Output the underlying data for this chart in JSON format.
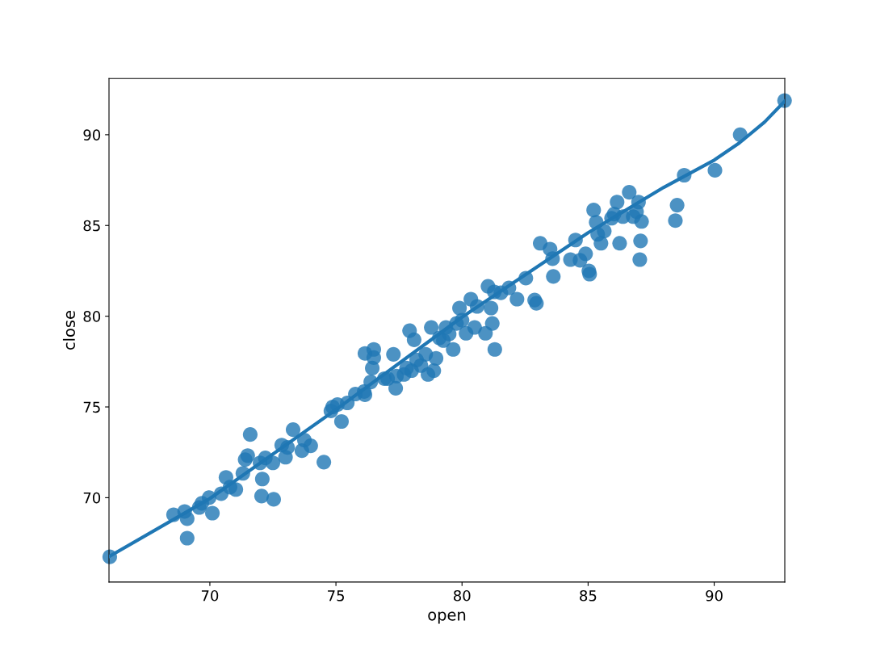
{
  "chart_data": {
    "type": "scatter",
    "xlabel": "open",
    "ylabel": "close",
    "xlim": [
      66.0,
      92.8
    ],
    "ylim": [
      65.35,
      93.1
    ],
    "xticks": [
      70,
      75,
      80,
      85,
      90
    ],
    "yticks": [
      70,
      75,
      80,
      85,
      90
    ],
    "grid": false,
    "series": [
      {
        "color": "#1f77b4",
        "marker": "circle",
        "x": [
          66.03,
          68.56,
          69.0,
          69.1,
          69.1,
          69.58,
          69.68,
          69.97,
          70.1,
          70.45,
          70.64,
          70.8,
          71.03,
          71.31,
          71.4,
          71.5,
          71.6,
          71.99,
          72.08,
          72.05,
          72.2,
          72.53,
          72.5,
          72.85,
          73.0,
          73.08,
          73.3,
          73.65,
          73.75,
          74.0,
          74.52,
          74.8,
          74.87,
          75.06,
          75.22,
          75.45,
          75.77,
          76.12,
          76.15,
          76.15,
          76.38,
          76.44,
          76.5,
          76.5,
          76.92,
          77.05,
          77.28,
          77.37,
          77.4,
          77.7,
          77.8,
          77.92,
          78.0,
          78.1,
          78.2,
          78.37,
          78.56,
          78.65,
          78.78,
          78.88,
          78.97,
          79.1,
          79.26,
          79.36,
          79.49,
          79.65,
          79.78,
          79.9,
          80.0,
          80.16,
          80.35,
          80.5,
          80.6,
          80.93,
          81.03,
          81.15,
          81.2,
          81.3,
          81.28,
          81.54,
          81.86,
          82.18,
          82.53,
          82.88,
          82.95,
          83.1,
          83.49,
          83.59,
          83.62,
          84.5,
          84.3,
          84.68,
          84.9,
          85.03,
          85.06,
          85.22,
          85.32,
          85.38,
          85.51,
          85.64,
          85.93,
          86.03,
          86.15,
          86.25,
          86.38,
          86.63,
          86.79,
          86.92,
          87.0,
          87.05,
          87.08,
          87.12,
          88.46,
          88.53,
          88.81,
          90.03,
          91.03,
          92.79
        ],
        "values": [
          66.74,
          69.06,
          69.24,
          68.84,
          67.77,
          69.46,
          69.69,
          70.0,
          69.15,
          70.22,
          71.12,
          70.58,
          70.45,
          71.34,
          72.1,
          72.32,
          73.48,
          71.92,
          71.03,
          70.09,
          72.19,
          69.91,
          71.92,
          72.9,
          72.23,
          72.77,
          73.75,
          72.59,
          73.17,
          72.86,
          71.96,
          74.78,
          75.0,
          75.13,
          74.2,
          75.22,
          75.71,
          75.85,
          77.95,
          75.67,
          76.38,
          77.14,
          78.17,
          77.72,
          76.56,
          76.56,
          77.9,
          76.03,
          76.7,
          76.79,
          77.14,
          79.2,
          77.0,
          78.7,
          77.59,
          77.28,
          77.9,
          76.79,
          79.38,
          77.0,
          77.68,
          78.8,
          78.66,
          79.38,
          79.02,
          78.17,
          79.6,
          80.45,
          79.78,
          79.06,
          80.94,
          79.38,
          80.54,
          79.06,
          81.65,
          80.45,
          79.6,
          78.17,
          81.34,
          81.29,
          81.56,
          80.94,
          82.1,
          80.89,
          80.71,
          84.02,
          83.7,
          83.17,
          82.19,
          84.2,
          83.12,
          83.08,
          83.44,
          82.5,
          82.32,
          85.85,
          85.18,
          84.51,
          84.02,
          84.69,
          85.4,
          85.63,
          86.29,
          84.02,
          85.49,
          86.83,
          85.49,
          85.76,
          86.29,
          83.12,
          84.15,
          85.22,
          85.27,
          86.12,
          87.77,
          88.04,
          90.0,
          91.88
        ]
      },
      {
        "type": "line",
        "color": "#1f77b4",
        "marker": "none",
        "line_style": "solid",
        "x": [
          66.0,
          70.0,
          75.0,
          80.0,
          85.0,
          88.0,
          90.0,
          91.0,
          92.0,
          92.8
        ],
        "values": [
          66.75,
          69.95,
          74.85,
          79.95,
          84.6,
          87.1,
          88.6,
          89.55,
          90.7,
          91.85
        ]
      }
    ]
  }
}
